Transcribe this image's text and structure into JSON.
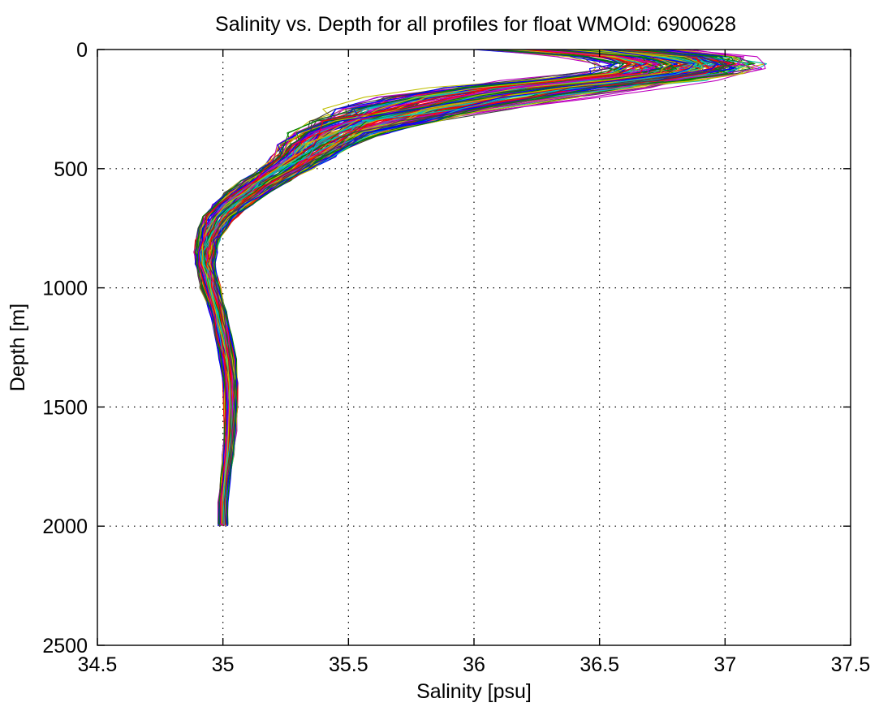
{
  "chart_data": {
    "type": "line",
    "title": "Salinity vs. Depth for all profiles for float WMOId: 6900628",
    "xlabel": "Salinity [psu]",
    "ylabel": "Depth [m]",
    "xlim": [
      34.5,
      37.5
    ],
    "ylim": [
      0,
      2500
    ],
    "y_reversed": true,
    "grid": true,
    "legend": "none",
    "xticks": [
      34.5,
      35,
      35.5,
      36,
      36.5,
      37,
      37.5
    ],
    "xtick_labels": [
      "34.5",
      "35",
      "35.5",
      "36",
      "36.5",
      "37",
      "37.5"
    ],
    "yticks": [
      0,
      500,
      1000,
      1500,
      2000,
      2500
    ],
    "ytick_labels": [
      "0",
      "500",
      "1000",
      "1500",
      "2000",
      "2500"
    ],
    "series_colors": [
      "#0000ff",
      "#008000",
      "#ff0000",
      "#00bfbf",
      "#bf00bf",
      "#bfbf00",
      "#404040"
    ],
    "profile_count": 150,
    "profile_depths": [
      0,
      30,
      60,
      80,
      100,
      130,
      160,
      200,
      250,
      300,
      350,
      400,
      450,
      500,
      550,
      600,
      650,
      700,
      750,
      800,
      850,
      900,
      950,
      1000,
      1100,
      1200,
      1300,
      1400,
      1500,
      1600,
      1700,
      1800,
      1900,
      2000
    ],
    "typical_profile_salinity": [
      36.45,
      36.75,
      36.85,
      36.82,
      36.78,
      36.55,
      36.3,
      36.05,
      35.8,
      35.6,
      35.46,
      35.38,
      35.32,
      35.25,
      35.17,
      35.1,
      35.04,
      34.99,
      34.96,
      34.94,
      34.93,
      34.93,
      34.94,
      34.95,
      34.98,
      35.0,
      35.02,
      35.03,
      35.03,
      35.03,
      35.02,
      35.01,
      35.0,
      35.0
    ],
    "spread_salinity": [
      0.35,
      0.3,
      0.28,
      0.28,
      0.28,
      0.32,
      0.35,
      0.35,
      0.3,
      0.25,
      0.2,
      0.16,
      0.13,
      0.11,
      0.1,
      0.09,
      0.08,
      0.07,
      0.06,
      0.05,
      0.05,
      0.04,
      0.04,
      0.04,
      0.035,
      0.035,
      0.035,
      0.03,
      0.03,
      0.025,
      0.025,
      0.02,
      0.02,
      0.02
    ]
  }
}
